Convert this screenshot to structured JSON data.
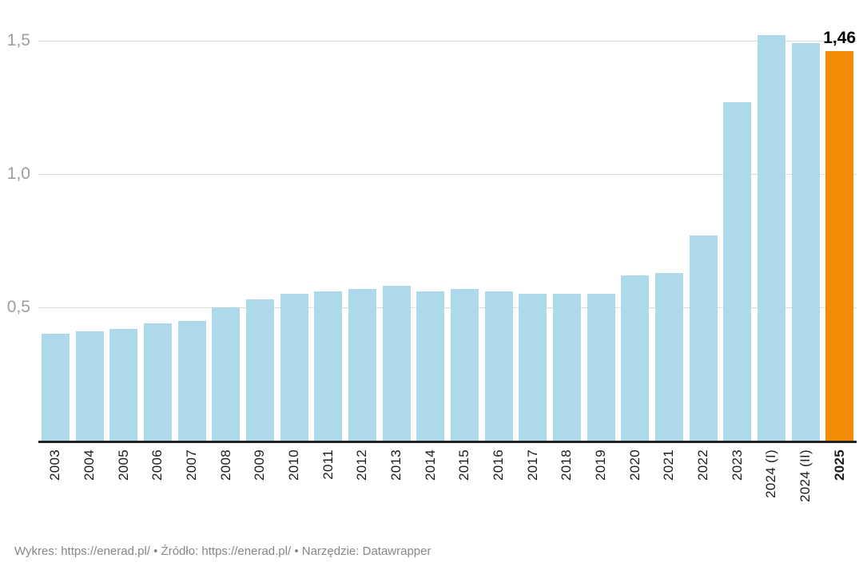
{
  "chart_data": {
    "type": "bar",
    "title": "",
    "xlabel": "",
    "ylabel": "",
    "categories": [
      "2003",
      "2004",
      "2005",
      "2006",
      "2007",
      "2008",
      "2009",
      "2010",
      "2011",
      "2012",
      "2013",
      "2014",
      "2015",
      "2016",
      "2017",
      "2018",
      "2019",
      "2020",
      "2021",
      "2022",
      "2023",
      "2024 (I)",
      "2024 (II)",
      "2025"
    ],
    "values": [
      0.4,
      0.41,
      0.42,
      0.44,
      0.45,
      0.5,
      0.53,
      0.55,
      0.56,
      0.57,
      0.58,
      0.56,
      0.57,
      0.56,
      0.55,
      0.55,
      0.55,
      0.62,
      0.63,
      0.77,
      1.27,
      1.52,
      1.49,
      1.46
    ],
    "highlight_index": 23,
    "highlight_value_label": "1,46",
    "y_ticks": [
      {
        "value": 0.5,
        "label": "0,5"
      },
      {
        "value": 1.0,
        "label": "1,0"
      },
      {
        "value": 1.5,
        "label": "1,5"
      }
    ],
    "ylim": [
      0,
      1.65
    ],
    "grid": true,
    "legend_position": "none",
    "bar_color": "#ADD9EB",
    "highlight_color": "#F28C05",
    "gridline_color": "#dcdcdc",
    "axis_line_color": "#222222"
  },
  "footer": {
    "parts": [
      {
        "label": "Wykres: "
      },
      {
        "label": "https://enerad.pl/"
      },
      {
        "label": " • Źródło: "
      },
      {
        "label": "https://enerad.pl/"
      },
      {
        "label": " • Narzędzie: "
      },
      {
        "label": "Datawrapper"
      }
    ]
  }
}
